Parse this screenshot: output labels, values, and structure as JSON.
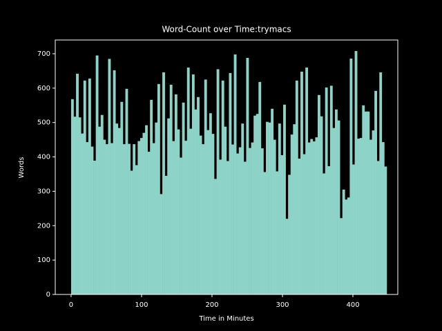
{
  "chart_data": {
    "type": "bar",
    "title": "Word-Count over Time:trymacs",
    "xlabel": "Time in Minutes",
    "ylabel": "Words",
    "color": "#8dd3c7",
    "x": [
      0,
      3.5,
      7,
      10.5,
      14,
      17.5,
      21,
      24.5,
      28,
      31.5,
      35,
      38.5,
      42,
      45.5,
      49,
      52.5,
      56,
      59.5,
      63,
      66.5,
      70,
      73.5,
      77,
      80.5,
      84,
      87.5,
      91,
      94.5,
      98,
      101.5,
      105,
      108.5,
      112,
      115.5,
      119,
      122.5,
      126,
      129.5,
      133,
      136.5,
      140,
      143.5,
      147,
      150.5,
      154,
      157.5,
      161,
      164.5,
      168,
      171.5,
      175,
      178.5,
      182,
      185.5,
      189,
      192.5,
      196,
      199.5,
      203,
      206.5,
      210,
      213.5,
      217,
      220.5,
      224,
      227.5,
      231,
      234.5,
      238,
      241.5,
      245,
      248.5,
      252,
      255.5,
      259,
      262.5,
      266,
      269.5,
      273,
      276.5,
      280,
      283.5,
      287,
      290.5,
      294,
      297.5,
      301,
      304.5,
      308,
      311.5,
      315,
      318.5,
      322,
      325.5,
      329,
      332.5,
      336,
      339.5,
      343,
      346.5,
      350,
      353.5,
      357,
      360.5,
      364,
      367.5,
      371,
      374.5,
      378,
      381.5,
      385,
      388.5,
      392,
      395.5,
      399,
      402.5,
      406,
      409.5,
      413,
      416.5,
      420,
      423.5,
      427,
      430.5,
      434,
      437.5,
      441,
      444.5
    ],
    "values": [
      568,
      517,
      642,
      515,
      468,
      622,
      443,
      628,
      430,
      389,
      695,
      488,
      522,
      450,
      437,
      685,
      440,
      652,
      497,
      484,
      560,
      437,
      598,
      438,
      360,
      437,
      376,
      446,
      455,
      470,
      492,
      415,
      566,
      440,
      500,
      612,
      292,
      646,
      345,
      512,
      610,
      446,
      582,
      480,
      398,
      558,
      447,
      660,
      482,
      640,
      538,
      574,
      462,
      437,
      625,
      478,
      527,
      467,
      336,
      655,
      392,
      622,
      488,
      388,
      644,
      436,
      698,
      410,
      428,
      497,
      386,
      688,
      426,
      442,
      520,
      525,
      618,
      425,
      356,
      502,
      500,
      540,
      450,
      358,
      497,
      405,
      552,
      220,
      348,
      465,
      495,
      622,
      395,
      648,
      408,
      660,
      442,
      452,
      445,
      457,
      580,
      518,
      352,
      602,
      373,
      607,
      484,
      538,
      506,
      222,
      305,
      276,
      282,
      686,
      378,
      708,
      453,
      455,
      550,
      532,
      532,
      450,
      477,
      592,
      388,
      646,
      443,
      372
    ],
    "xlim": [
      -22.5,
      463.7
    ],
    "ylim": [
      0,
      740
    ],
    "xticks": [
      0,
      100,
      200,
      300,
      400
    ],
    "yticks": [
      0,
      100,
      200,
      300,
      400,
      500,
      600,
      700
    ]
  }
}
